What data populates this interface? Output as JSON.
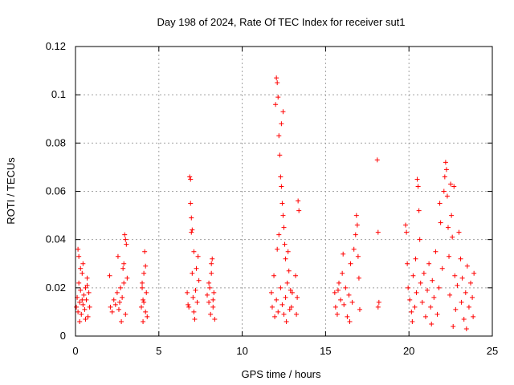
{
  "chart_data": {
    "type": "scatter",
    "title": "Day 198 of 2024, Rate Of TEC Index for receiver sut1",
    "xlabel": "GPS time / hours",
    "ylabel": "ROTI / TECUs",
    "xlim": [
      0,
      25
    ],
    "ylim": [
      0,
      0.12
    ],
    "xticks": [
      0,
      5,
      10,
      15,
      20,
      25
    ],
    "xtick_labels": [
      "0",
      "5",
      "10",
      "15",
      "20",
      "25"
    ],
    "yticks": [
      0,
      0.02,
      0.04,
      0.06,
      0.08,
      0.1,
      0.12
    ],
    "ytick_labels": [
      "0",
      "0.02",
      "0.04",
      "0.06",
      "0.08",
      "0.1",
      "0.12"
    ],
    "grid": true,
    "marker": "+",
    "color": "#ff0000",
    "series": [
      {
        "name": "ROTI",
        "points": [
          [
            0.05,
            0.012
          ],
          [
            0.1,
            0.016
          ],
          [
            0.15,
            0.01
          ],
          [
            0.2,
            0.022
          ],
          [
            0.25,
            0.014
          ],
          [
            0.3,
            0.019
          ],
          [
            0.35,
            0.009
          ],
          [
            0.4,
            0.026
          ],
          [
            0.45,
            0.013
          ],
          [
            0.5,
            0.017
          ],
          [
            0.55,
            0.011
          ],
          [
            0.6,
            0.02
          ],
          [
            0.65,
            0.015
          ],
          [
            0.7,
            0.024
          ],
          [
            0.75,
            0.008
          ],
          [
            0.8,
            0.018
          ],
          [
            0.85,
            0.012
          ],
          [
            0.15,
            0.036
          ],
          [
            0.2,
            0.033
          ],
          [
            0.3,
            0.028
          ],
          [
            0.45,
            0.03
          ],
          [
            0.6,
            0.007
          ],
          [
            0.25,
            0.006
          ],
          [
            0.7,
            0.021
          ],
          [
            0.4,
            0.015
          ],
          [
            2.05,
            0.025
          ],
          [
            2.1,
            0.012
          ],
          [
            2.2,
            0.01
          ],
          [
            2.3,
            0.015
          ],
          [
            2.4,
            0.013
          ],
          [
            2.5,
            0.018
          ],
          [
            2.6,
            0.011
          ],
          [
            2.7,
            0.02
          ],
          [
            2.8,
            0.016
          ],
          [
            2.85,
            0.028
          ],
          [
            2.9,
            0.03
          ],
          [
            2.95,
            0.042
          ],
          [
            3.0,
            0.04
          ],
          [
            3.05,
            0.038
          ],
          [
            2.9,
            0.022
          ],
          [
            3.0,
            0.009
          ],
          [
            2.75,
            0.006
          ],
          [
            2.65,
            0.014
          ],
          [
            3.1,
            0.024
          ],
          [
            2.55,
            0.033
          ],
          [
            3.95,
            0.012
          ],
          [
            4.0,
            0.02
          ],
          [
            4.05,
            0.015
          ],
          [
            4.1,
            0.026
          ],
          [
            4.15,
            0.035
          ],
          [
            4.2,
            0.01
          ],
          [
            4.25,
            0.018
          ],
          [
            4.3,
            0.008
          ],
          [
            4.1,
            0.014
          ],
          [
            4.0,
            0.022
          ],
          [
            4.2,
            0.029
          ],
          [
            4.05,
            0.006
          ],
          [
            6.7,
            0.018
          ],
          [
            6.75,
            0.013
          ],
          [
            6.8,
            0.012
          ],
          [
            6.85,
            0.066
          ],
          [
            6.9,
            0.065
          ],
          [
            6.9,
            0.055
          ],
          [
            6.95,
            0.049
          ],
          [
            6.95,
            0.043
          ],
          [
            7.0,
            0.044
          ],
          [
            7.0,
            0.026
          ],
          [
            7.05,
            0.016
          ],
          [
            7.1,
            0.01
          ],
          [
            7.15,
            0.007
          ],
          [
            7.2,
            0.019
          ],
          [
            7.3,
            0.014
          ],
          [
            7.35,
            0.033
          ],
          [
            7.25,
            0.028
          ],
          [
            7.4,
            0.023
          ],
          [
            7.1,
            0.035
          ],
          [
            7.9,
            0.017
          ],
          [
            8.0,
            0.014
          ],
          [
            8.05,
            0.02
          ],
          [
            8.1,
            0.009
          ],
          [
            8.15,
            0.026
          ],
          [
            8.2,
            0.032
          ],
          [
            8.25,
            0.012
          ],
          [
            8.3,
            0.018
          ],
          [
            8.35,
            0.007
          ],
          [
            8.15,
            0.03
          ],
          [
            8.0,
            0.022
          ],
          [
            8.25,
            0.015
          ],
          [
            11.75,
            0.018
          ],
          [
            11.8,
            0.012
          ],
          [
            11.9,
            0.025
          ],
          [
            12.0,
            0.096
          ],
          [
            12.05,
            0.107
          ],
          [
            12.1,
            0.105
          ],
          [
            12.15,
            0.099
          ],
          [
            12.2,
            0.083
          ],
          [
            12.25,
            0.075
          ],
          [
            12.3,
            0.066
          ],
          [
            12.35,
            0.062
          ],
          [
            12.4,
            0.055
          ],
          [
            12.45,
            0.05
          ],
          [
            12.5,
            0.045
          ],
          [
            12.55,
            0.038
          ],
          [
            12.6,
            0.032
          ],
          [
            12.2,
            0.042
          ],
          [
            12.3,
            0.02
          ],
          [
            12.4,
            0.013
          ],
          [
            12.5,
            0.009
          ],
          [
            12.6,
            0.016
          ],
          [
            12.7,
            0.022
          ],
          [
            12.8,
            0.027
          ],
          [
            12.9,
            0.019
          ],
          [
            12.95,
            0.012
          ],
          [
            13.0,
            0.018
          ],
          [
            12.05,
            0.015
          ],
          [
            12.15,
            0.01
          ],
          [
            12.35,
            0.088
          ],
          [
            12.45,
            0.093
          ],
          [
            13.2,
            0.025
          ],
          [
            13.3,
            0.016
          ],
          [
            13.35,
            0.056
          ],
          [
            13.4,
            0.052
          ],
          [
            13.25,
            0.009
          ],
          [
            12.75,
            0.035
          ],
          [
            12.85,
            0.011
          ],
          [
            12.1,
            0.036
          ],
          [
            11.95,
            0.008
          ],
          [
            12.65,
            0.006
          ],
          [
            15.55,
            0.018
          ],
          [
            15.6,
            0.012
          ],
          [
            15.7,
            0.009
          ],
          [
            15.8,
            0.022
          ],
          [
            15.9,
            0.015
          ],
          [
            16.0,
            0.026
          ],
          [
            16.1,
            0.013
          ],
          [
            16.2,
            0.02
          ],
          [
            16.3,
            0.008
          ],
          [
            16.4,
            0.017
          ],
          [
            16.5,
            0.03
          ],
          [
            16.6,
            0.014
          ],
          [
            16.7,
            0.036
          ],
          [
            16.8,
            0.042
          ],
          [
            16.85,
            0.05
          ],
          [
            16.9,
            0.046
          ],
          [
            16.95,
            0.033
          ],
          [
            17.0,
            0.024
          ],
          [
            17.05,
            0.011
          ],
          [
            16.45,
            0.006
          ],
          [
            16.05,
            0.034
          ],
          [
            15.75,
            0.019
          ],
          [
            18.1,
            0.073
          ],
          [
            18.15,
            0.043
          ],
          [
            18.2,
            0.014
          ],
          [
            18.15,
            0.012
          ],
          [
            19.8,
            0.046
          ],
          [
            19.85,
            0.043
          ],
          [
            19.9,
            0.03
          ],
          [
            19.95,
            0.02
          ],
          [
            20.05,
            0.015
          ],
          [
            20.15,
            0.01
          ],
          [
            20.25,
            0.025
          ],
          [
            20.35,
            0.012
          ],
          [
            20.4,
            0.032
          ],
          [
            20.45,
            0.018
          ],
          [
            20.5,
            0.065
          ],
          [
            20.55,
            0.062
          ],
          [
            20.6,
            0.052
          ],
          [
            20.65,
            0.04
          ],
          [
            20.7,
            0.022
          ],
          [
            20.8,
            0.014
          ],
          [
            20.9,
            0.026
          ],
          [
            21.0,
            0.008
          ],
          [
            21.1,
            0.019
          ],
          [
            21.2,
            0.03
          ],
          [
            21.3,
            0.012
          ],
          [
            21.4,
            0.023
          ],
          [
            21.5,
            0.016
          ],
          [
            21.6,
            0.035
          ],
          [
            21.7,
            0.009
          ],
          [
            21.8,
            0.02
          ],
          [
            21.85,
            0.055
          ],
          [
            21.9,
            0.047
          ],
          [
            22.0,
            0.028
          ],
          [
            22.1,
            0.06
          ],
          [
            22.15,
            0.066
          ],
          [
            22.2,
            0.072
          ],
          [
            22.25,
            0.069
          ],
          [
            22.3,
            0.058
          ],
          [
            22.35,
            0.045
          ],
          [
            22.4,
            0.033
          ],
          [
            22.45,
            0.017
          ],
          [
            22.5,
            0.063
          ],
          [
            22.55,
            0.05
          ],
          [
            22.6,
            0.041
          ],
          [
            22.7,
            0.062
          ],
          [
            22.75,
            0.025
          ],
          [
            22.8,
            0.011
          ],
          [
            22.9,
            0.021
          ],
          [
            23.0,
            0.043
          ],
          [
            23.1,
            0.032
          ],
          [
            23.15,
            0.014
          ],
          [
            23.2,
            0.024
          ],
          [
            23.3,
            0.007
          ],
          [
            23.4,
            0.018
          ],
          [
            23.45,
            0.003
          ],
          [
            23.5,
            0.029
          ],
          [
            23.6,
            0.012
          ],
          [
            23.7,
            0.022
          ],
          [
            23.8,
            0.016
          ],
          [
            23.85,
            0.008
          ],
          [
            23.9,
            0.026
          ],
          [
            20.2,
            0.006
          ],
          [
            21.35,
            0.005
          ],
          [
            22.65,
            0.004
          ]
        ]
      }
    ]
  }
}
